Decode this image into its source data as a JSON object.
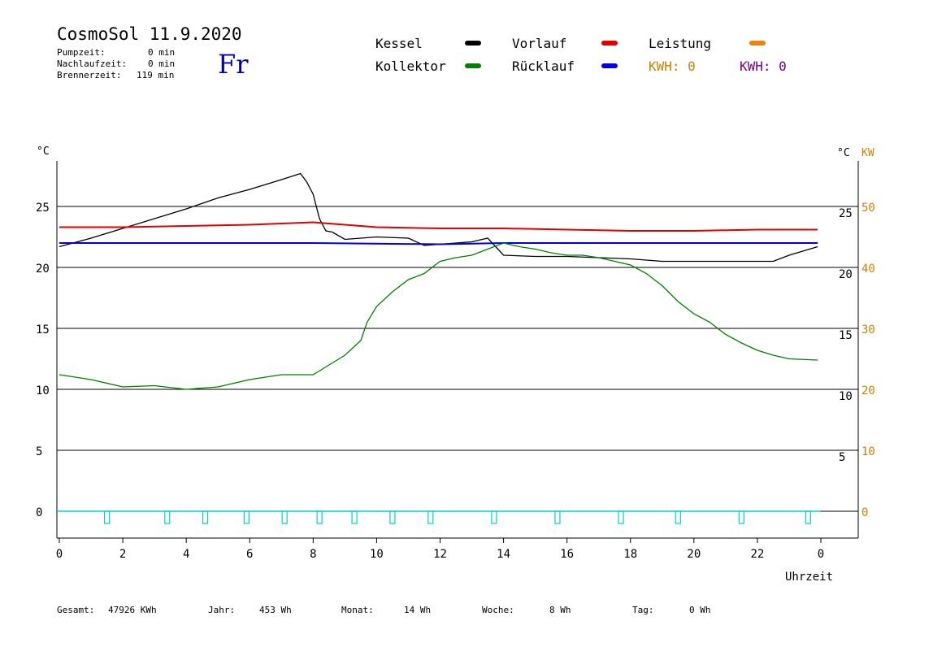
{
  "header": {
    "title": "CosmoSol 11.9.2020",
    "weekday": "Fr",
    "stats": [
      {
        "label": "Pumpzeit:",
        "value": "0 min"
      },
      {
        "label": "Nachlaufzeit:",
        "value": "0 min"
      },
      {
        "label": "Brennerzeit:",
        "value": "119 min"
      }
    ]
  },
  "legend": {
    "kessel": "Kessel",
    "vorlauf": "Vorlauf",
    "leistung": "Leistung",
    "kollektor": "Kollektor",
    "ruecklauf": "Rücklauf",
    "kwh1": "KWH: 0",
    "kwh2": "KWH: 0"
  },
  "colors": {
    "kessel": "#000000",
    "vorlauf": "#e00000",
    "leistung": "#f08010",
    "kollektor": "#008000",
    "ruecklauf": "#0000e0",
    "pump": "#00d0d0",
    "kw_axis": "#d08000",
    "kwh2": "#800080",
    "weekday": "#0000b0"
  },
  "footer": [
    {
      "label": "Gesamt:",
      "value": "47926 KWh"
    },
    {
      "label": "Jahr:",
      "value": "453 Wh"
    },
    {
      "label": "Monat:",
      "value": "14 Wh"
    },
    {
      "label": "Woche:",
      "value": "8 Wh"
    },
    {
      "label": "Tag:",
      "value": "0 Wh"
    }
  ],
  "chart_data": {
    "type": "line",
    "xlabel": "Uhrzeit",
    "ylabel_left": "°C",
    "ylabel_right": "°C",
    "ylabel_right2": "KW",
    "xlim": [
      0,
      24
    ],
    "ylim": [
      -2.2,
      29
    ],
    "x_ticks": [
      "0",
      "2",
      "4",
      "6",
      "8",
      "10",
      "12",
      "14",
      "16",
      "18",
      "20",
      "22",
      "0"
    ],
    "y_ticks_left": [
      "0",
      "5",
      "10",
      "15",
      "20",
      "25"
    ],
    "y_ticks_right": [
      "5",
      "10",
      "15",
      "20",
      "25"
    ],
    "y_ticks_kw": [
      "0",
      "10",
      "20",
      "30",
      "40",
      "50"
    ],
    "grid": "horizontal",
    "series": [
      {
        "name": "Kessel",
        "color": "#000000",
        "x": [
          0,
          1,
          2,
          3,
          4,
          5,
          6,
          7,
          7.6,
          7.8,
          8.0,
          8.2,
          8.4,
          8.6,
          9,
          10,
          11,
          11.5,
          12,
          13,
          13.5,
          14,
          15,
          16,
          17,
          18,
          19,
          20,
          21,
          22,
          22.5,
          23,
          23.9
        ],
        "y": [
          21.7,
          22.4,
          23.2,
          24.0,
          24.8,
          25.7,
          26.4,
          27.2,
          27.7,
          27.0,
          26.0,
          24.0,
          23.0,
          22.9,
          22.3,
          22.5,
          22.4,
          21.8,
          21.9,
          22.1,
          22.4,
          21.0,
          20.9,
          20.9,
          20.8,
          20.7,
          20.5,
          20.5,
          20.5,
          20.5,
          20.5,
          21.0,
          21.7
        ]
      },
      {
        "name": "Vorlauf",
        "color": "#e00000",
        "x": [
          0,
          2,
          4,
          6,
          8,
          9,
          10,
          12,
          14,
          16,
          18,
          20,
          22,
          23.9
        ],
        "y": [
          23.3,
          23.3,
          23.4,
          23.5,
          23.7,
          23.5,
          23.3,
          23.2,
          23.2,
          23.1,
          23.0,
          23.0,
          23.1,
          23.1
        ]
      },
      {
        "name": "Rücklauf",
        "color": "#0000e0",
        "x": [
          0,
          4,
          8,
          12,
          14,
          16,
          18,
          20,
          23.9
        ],
        "y": [
          22.0,
          22.0,
          22.0,
          21.9,
          22.0,
          22.0,
          22.0,
          22.0,
          22.0
        ]
      },
      {
        "name": "Kollektor",
        "color": "#008000",
        "x": [
          0,
          1,
          2,
          3,
          4,
          5,
          6,
          7,
          8,
          8.5,
          9,
          9.5,
          9.7,
          10,
          10.5,
          11,
          11.5,
          12,
          12.5,
          13,
          13.5,
          14,
          14.5,
          15,
          15.5,
          16,
          16.5,
          17,
          17.5,
          18,
          18.5,
          19,
          19.5,
          20,
          20.5,
          21,
          21.5,
          22,
          22.5,
          23,
          23.9
        ],
        "y": [
          11.2,
          10.8,
          10.2,
          10.3,
          10.0,
          10.2,
          10.8,
          11.2,
          11.2,
          12.0,
          12.8,
          14.0,
          15.5,
          16.8,
          18.0,
          19.0,
          19.5,
          20.5,
          20.8,
          21.0,
          21.5,
          22.0,
          21.7,
          21.5,
          21.2,
          21.0,
          21.0,
          20.8,
          20.5,
          20.2,
          19.5,
          18.5,
          17.2,
          16.2,
          15.5,
          14.5,
          13.8,
          13.2,
          12.8,
          12.5,
          12.4
        ]
      }
    ],
    "pump_events_x": [
      1.5,
      3.4,
      4.6,
      5.9,
      7.1,
      8.2,
      9.3,
      10.5,
      11.7,
      13.7,
      15.7,
      17.7,
      19.5,
      21.5,
      23.6
    ]
  }
}
